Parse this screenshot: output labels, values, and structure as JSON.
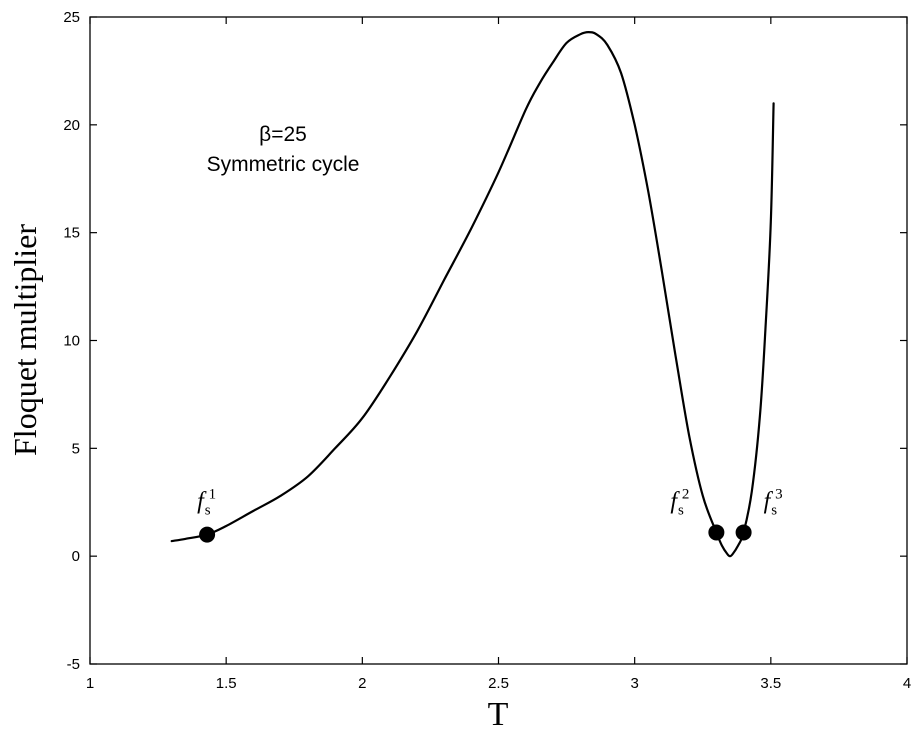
{
  "chart_data": {
    "type": "line",
    "title": "",
    "xlabel": "T",
    "ylabel": "Floquet multiplier",
    "xlim": [
      1,
      4
    ],
    "ylim": [
      -5,
      25
    ],
    "xticks": [
      1,
      1.5,
      2,
      2.5,
      3,
      3.5,
      4
    ],
    "xtick_labels": [
      "1",
      "1.5",
      "2",
      "2.5",
      "3",
      "3.5",
      "4"
    ],
    "yticks": [
      -5,
      0,
      5,
      10,
      15,
      20,
      25
    ],
    "ytick_labels": [
      "-5",
      "0",
      "5",
      "10",
      "15",
      "20",
      "25"
    ],
    "grid": false,
    "annotations": [
      "β=25",
      "Symmetric cycle"
    ],
    "series": [
      {
        "x": [
          1.3,
          1.35,
          1.43,
          1.5,
          1.6,
          1.7,
          1.8,
          1.9,
          2.0,
          2.1,
          2.2,
          2.3,
          2.4,
          2.5,
          2.6,
          2.65,
          2.7,
          2.75,
          2.8,
          2.83,
          2.86,
          2.9,
          2.95,
          3.0,
          3.05,
          3.1,
          3.15,
          3.2,
          3.25,
          3.3,
          3.32,
          3.34,
          3.35,
          3.36,
          3.38,
          3.4,
          3.43,
          3.46,
          3.48,
          3.5,
          3.51
        ],
        "y": [
          0.7,
          0.8,
          1.0,
          1.4,
          2.1,
          2.8,
          3.7,
          5.0,
          6.4,
          8.3,
          10.4,
          12.8,
          15.2,
          17.8,
          20.7,
          21.9,
          22.9,
          23.8,
          24.2,
          24.3,
          24.2,
          23.7,
          22.4,
          20.0,
          16.9,
          13.2,
          9.3,
          5.6,
          2.8,
          1.1,
          0.5,
          0.1,
          0.0,
          0.1,
          0.5,
          1.1,
          3.0,
          6.5,
          10.5,
          15.5,
          21.0
        ]
      }
    ],
    "points": [
      {
        "x": 1.43,
        "y": 1.0,
        "label": "f",
        "sub": "s",
        "sup": "1"
      },
      {
        "x": 3.3,
        "y": 1.1,
        "label": "f",
        "sub": "s",
        "sup": "2"
      },
      {
        "x": 3.4,
        "y": 1.1,
        "label": "f",
        "sub": "s",
        "sup": "3"
      }
    ]
  }
}
